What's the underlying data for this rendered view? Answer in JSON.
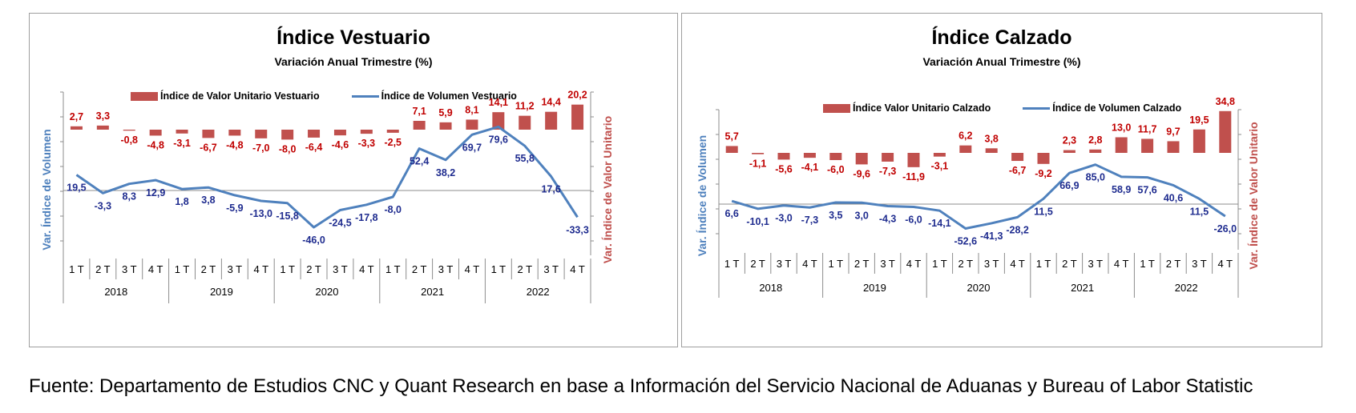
{
  "footnote": "Fuente: Departamento de Estudios CNC y Quant Research en base a Información del Servicio Nacional de Aduanas y Bureau of Labor Statistic",
  "colors": {
    "bar": "#c0504d",
    "line": "#4f81bd",
    "bar_label": "#c00000",
    "line_label": "#1f2c8f"
  },
  "chart_data": [
    {
      "type": "bar+line",
      "title": "Índice Vestuario",
      "subtitle": "Variación Anual Trimestre  (%)",
      "ylabel_left": "Var. Índice de Volumen",
      "ylabel_right": "Var. Índice de Valor Unitario",
      "legend_position": "top",
      "quarters": [
        "1 T",
        "2 T",
        "3 T",
        "4 T",
        "1 T",
        "2 T",
        "3 T",
        "4 T",
        "1 T",
        "2 T",
        "3 T",
        "4 T",
        "1 T",
        "2 T",
        "3 T",
        "4 T",
        "1 T",
        "2 T",
        "3 T",
        "4 T"
      ],
      "years": [
        "2018",
        "2019",
        "2020",
        "2021",
        "2022"
      ],
      "series": [
        {
          "name": "Índice de Valor Unitario Vestuario",
          "kind": "bar",
          "values": [
            2.7,
            3.3,
            -0.8,
            -4.8,
            -3.1,
            -6.7,
            -4.8,
            -7.0,
            -8.0,
            -6.4,
            -4.6,
            -3.3,
            -2.5,
            7.1,
            5.9,
            8.1,
            14.1,
            11.2,
            14.4,
            20.2
          ],
          "labels": [
            "2,7",
            "3,3",
            "-0,8",
            "-4,8",
            "-3,1",
            "-6,7",
            "-4,8",
            "-7,0",
            "-8,0",
            "-6,4",
            "-4,6",
            "-3,3",
            "-2,5",
            "7,1",
            "5,9",
            "8,1",
            "14,1",
            "11,2",
            "14,4",
            "20,2"
          ]
        },
        {
          "name": "Índice de Volumen Vestuario",
          "kind": "line",
          "values": [
            19.5,
            -3.3,
            8.3,
            12.9,
            1.8,
            3.8,
            -5.9,
            -13.0,
            -15.8,
            -46.0,
            -24.5,
            -17.8,
            -8.0,
            52.4,
            38.2,
            69.7,
            79.6,
            55.8,
            17.6,
            -33.3
          ],
          "labels": [
            "19,5",
            "-3,3",
            "8,3",
            "12,9",
            "1,8",
            "3,8",
            "-5,9",
            "-13,0",
            "-15,8",
            "-46,0",
            "-24,5",
            "-17,8",
            "-8,0",
            "52,4",
            "38,2",
            "69,7",
            "79,6",
            "55,8",
            "17,6",
            "-33,3"
          ]
        }
      ]
    },
    {
      "type": "bar+line",
      "title": "Índice Calzado",
      "subtitle": "Variación Anual Trimestre  (%)",
      "ylabel_left": "Var. Índice de Volumen",
      "ylabel_right": "Var. Índice de Valor Unitario",
      "legend_position": "top",
      "quarters": [
        "1 T",
        "2 T",
        "3 T",
        "4 T",
        "1 T",
        "2 T",
        "3 T",
        "4 T",
        "1 T",
        "2 T",
        "3 T",
        "4 T",
        "1 T",
        "2 T",
        "3 T",
        "4 T",
        "1 T",
        "2 T",
        "3 T",
        "4 T"
      ],
      "years": [
        "2018",
        "2019",
        "2020",
        "2021",
        "2022"
      ],
      "series": [
        {
          "name": "Índice Valor Unitario Calzado",
          "kind": "bar",
          "values": [
            5.7,
            -1.1,
            -5.6,
            -4.1,
            -6.0,
            -9.6,
            -7.3,
            -11.9,
            -3.1,
            6.2,
            3.8,
            -6.7,
            -9.2,
            2.3,
            2.8,
            13.0,
            11.7,
            9.7,
            19.5,
            34.8
          ],
          "labels": [
            "5,7",
            "-1,1",
            "-5,6",
            "-4,1",
            "-6,0",
            "-9,6",
            "-7,3",
            "-11,9",
            "-3,1",
            "6,2",
            "3,8",
            "-6,7",
            "-9,2",
            "2,3",
            "2,8",
            "13,0",
            "11,7",
            "9,7",
            "19,5",
            "34,8"
          ]
        },
        {
          "name": "Índice de Volumen Calzado",
          "kind": "line",
          "values": [
            6.6,
            -10.1,
            -3.0,
            -7.3,
            3.5,
            3.0,
            -4.3,
            -6.0,
            -14.1,
            -52.6,
            -41.3,
            -28.2,
            11.5,
            66.9,
            85.0,
            58.9,
            57.6,
            40.6,
            11.5,
            -26.0
          ],
          "labels": [
            "6,6",
            "-10,1",
            "-3,0",
            "-7,3",
            "3,5",
            "3,0",
            "-4,3",
            "-6,0",
            "-14,1",
            "-52,6",
            "-41,3",
            "-28,2",
            "11,5",
            "66,9",
            "85,0",
            "58,9",
            "57,6",
            "40,6",
            "11,5",
            "-26,0"
          ]
        }
      ]
    }
  ]
}
